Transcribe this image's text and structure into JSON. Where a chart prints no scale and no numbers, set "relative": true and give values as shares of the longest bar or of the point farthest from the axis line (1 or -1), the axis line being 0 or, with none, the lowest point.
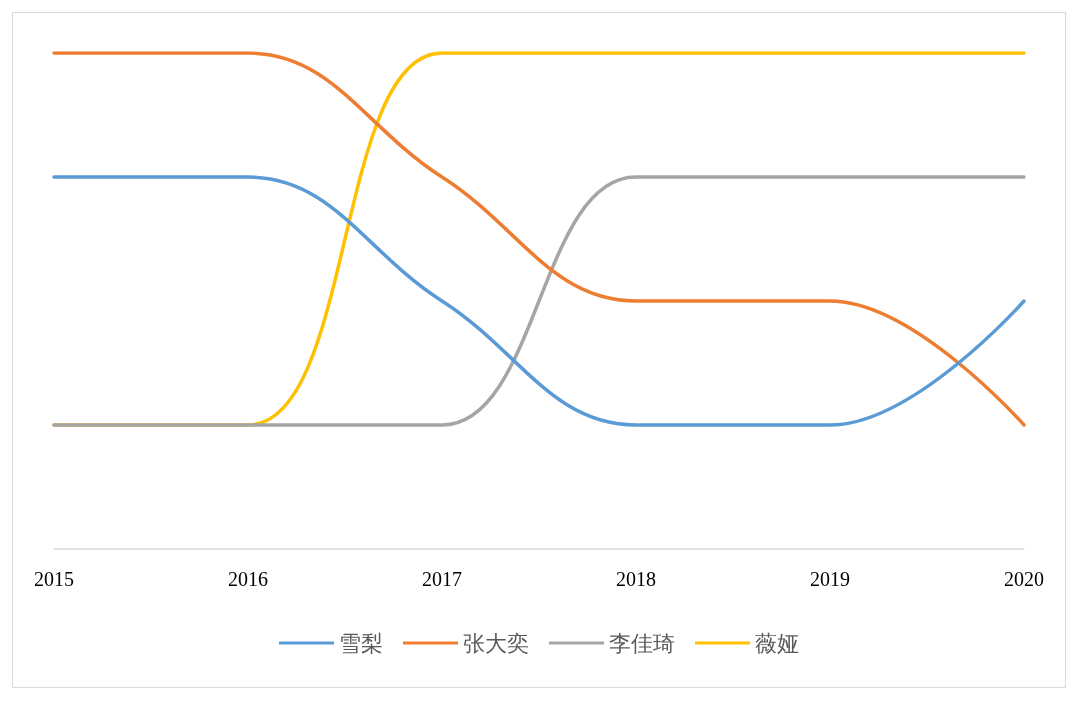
{
  "chart_data": {
    "type": "line",
    "relative": true,
    "categories": [
      "2015",
      "2016",
      "2017",
      "2018",
      "2019",
      "2020"
    ],
    "series": [
      {
        "name": "雪梨",
        "color": "#5b9bd5",
        "values": [
          0.75,
          0.75,
          0.5,
          0.25,
          0.25,
          0.5
        ]
      },
      {
        "name": "张大奕",
        "color": "#ed7d31",
        "values": [
          1,
          1,
          0.75,
          0.5,
          0.5,
          0.25
        ]
      },
      {
        "name": "李佳琦",
        "color": "#a5a5a5",
        "values": [
          0.25,
          0.25,
          0.25,
          0.75,
          0.75,
          0.75
        ]
      },
      {
        "name": "薇娅",
        "color": "#ffc000",
        "values": [
          0.25,
          0.25,
          1,
          1,
          1,
          1
        ]
      }
    ],
    "legend": "bottom",
    "grid": false,
    "marker": "none",
    "line_style": "solid"
  }
}
